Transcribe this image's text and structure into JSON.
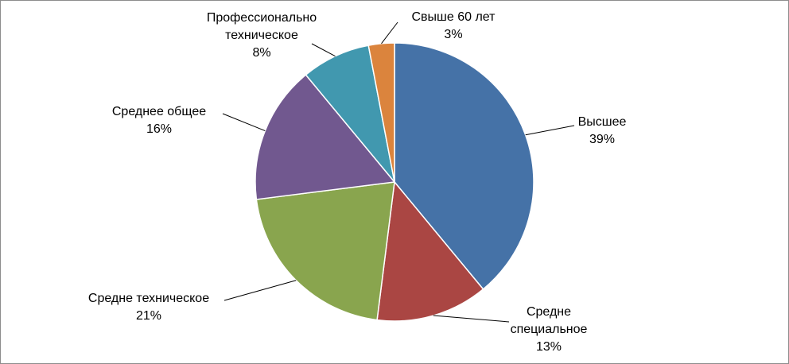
{
  "chart_data": {
    "type": "pie",
    "categories": [
      "Высшее",
      "Средне\nспециальное",
      "Средне техническое",
      "Среднее общее",
      "Профессионально\nтехническое",
      "Свыше 60 лет"
    ],
    "values": [
      39,
      13,
      21,
      16,
      8,
      3
    ],
    "value_labels": [
      "39%",
      "13%",
      "21%",
      "16%",
      "8%",
      "3%"
    ],
    "colors": [
      "#4572a7",
      "#aa4643",
      "#89a54e",
      "#71588f",
      "#4198af",
      "#db843d"
    ]
  }
}
